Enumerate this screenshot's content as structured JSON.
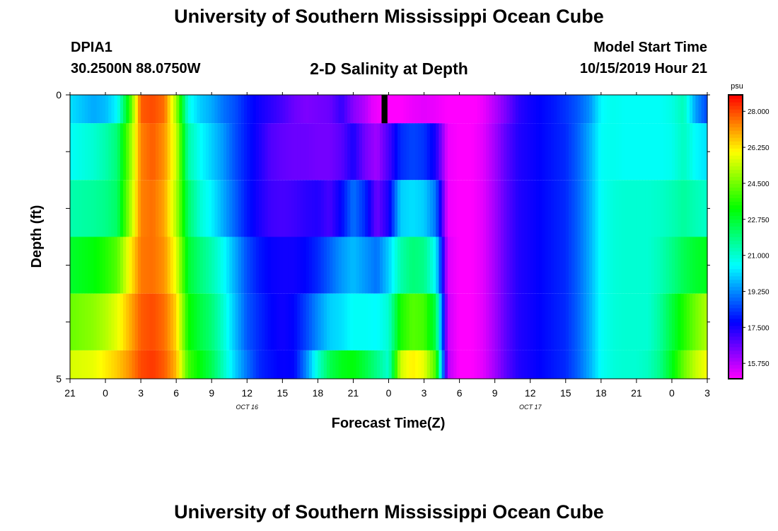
{
  "header": {
    "title": "University of Southern Mississippi Ocean Cube",
    "station": "DPIA1",
    "coords": "30.2500N 88.0750W",
    "subtitle": "2-D Salinity at Depth",
    "model_start_label": "Model Start Time",
    "model_start_value": "10/15/2019 Hour 21"
  },
  "footer": {
    "title": "University of Southern Mississippi Ocean Cube"
  },
  "chart_data": {
    "type": "heatmap",
    "title": "2-D Salinity at Depth",
    "xlabel": "Forecast Time(Z)",
    "ylabel": "Depth (ft)",
    "x_hours": [
      -6,
      48
    ],
    "x_ticks": [
      {
        "h": -6,
        "label": "21"
      },
      {
        "h": -3,
        "label": "0"
      },
      {
        "h": 0,
        "label": "3"
      },
      {
        "h": 3,
        "label": "6"
      },
      {
        "h": 6,
        "label": "9"
      },
      {
        "h": 9,
        "label": "12"
      },
      {
        "h": 12,
        "label": "15"
      },
      {
        "h": 15,
        "label": "18"
      },
      {
        "h": 18,
        "label": "21"
      },
      {
        "h": 21,
        "label": "0"
      },
      {
        "h": 24,
        "label": "3"
      },
      {
        "h": 27,
        "label": "6"
      },
      {
        "h": 30,
        "label": "9"
      },
      {
        "h": 33,
        "label": "12"
      },
      {
        "h": 36,
        "label": "15"
      },
      {
        "h": 39,
        "label": "18"
      },
      {
        "h": 42,
        "label": "21"
      },
      {
        "h": 45,
        "label": "0"
      },
      {
        "h": 48,
        "label": "3"
      }
    ],
    "date_labels": [
      {
        "h": 9,
        "label": "OCT 16"
      },
      {
        "h": 33,
        "label": "OCT 17"
      }
    ],
    "y_ticks": [
      {
        "depth": 0,
        "label": "0"
      },
      {
        "depth": 1,
        "label": ""
      },
      {
        "depth": 2,
        "label": ""
      },
      {
        "depth": 3,
        "label": ""
      },
      {
        "depth": 4,
        "label": ""
      },
      {
        "depth": 5,
        "label": "5"
      }
    ],
    "depth_range": [
      0,
      5
    ],
    "depth_bands": [
      {
        "top": 0.0,
        "bottom": 0.5
      },
      {
        "top": 0.5,
        "bottom": 1.5
      },
      {
        "top": 1.5,
        "bottom": 2.5
      },
      {
        "top": 2.5,
        "bottom": 3.5
      },
      {
        "top": 3.5,
        "bottom": 4.5
      },
      {
        "top": 4.5,
        "bottom": 5.0
      }
    ],
    "salinity_psu": [
      [
        [
          -6,
          20.2
        ],
        [
          -4,
          19.6
        ],
        [
          -3,
          19.8
        ],
        [
          -2,
          20.5
        ],
        [
          -1,
          23.5
        ],
        [
          0,
          27.8
        ],
        [
          1,
          28.0
        ],
        [
          2,
          27.6
        ],
        [
          3,
          25.0
        ],
        [
          4,
          20.8
        ],
        [
          5,
          20.0
        ],
        [
          6,
          19.6
        ],
        [
          7,
          19.0
        ],
        [
          8,
          18.6
        ],
        [
          9,
          18.0
        ],
        [
          10,
          17.6
        ],
        [
          11,
          17.3
        ],
        [
          12,
          17.0
        ],
        [
          13,
          16.6
        ],
        [
          14,
          16.4
        ],
        [
          15,
          16.5
        ],
        [
          16,
          16.6
        ],
        [
          17,
          17.2
        ],
        [
          18,
          16.3
        ],
        [
          19,
          15.8
        ],
        [
          19.6,
          15.3
        ],
        [
          20,
          15.2
        ],
        [
          20.5,
          15.0
        ],
        [
          21,
          15.0
        ],
        [
          22,
          15.0
        ],
        [
          23,
          15.2
        ],
        [
          24,
          15.3
        ],
        [
          25,
          15.2
        ],
        [
          26,
          15.0
        ],
        [
          27,
          14.9
        ],
        [
          28,
          14.9
        ],
        [
          29,
          15.2
        ],
        [
          30,
          15.8
        ],
        [
          31,
          16.5
        ],
        [
          32,
          17.3
        ],
        [
          33,
          17.6
        ],
        [
          34,
          17.8
        ],
        [
          35,
          18.0
        ],
        [
          36,
          18.3
        ],
        [
          37,
          18.7
        ],
        [
          38,
          19.3
        ],
        [
          39,
          20.5
        ],
        [
          40,
          20.7
        ],
        [
          41,
          20.6
        ],
        [
          42,
          20.6
        ],
        [
          43,
          20.6
        ],
        [
          44,
          20.6
        ],
        [
          45,
          20.8
        ],
        [
          46,
          21.3
        ],
        [
          47,
          19.5
        ],
        [
          48,
          18.5
        ]
      ],
      [
        [
          -6,
          20.6
        ],
        [
          -4,
          21.0
        ],
        [
          -3,
          21.4
        ],
        [
          -2,
          22.0
        ],
        [
          -1,
          24.5
        ],
        [
          0,
          27.4
        ],
        [
          1,
          27.8
        ],
        [
          2,
          27.2
        ],
        [
          3,
          25.5
        ],
        [
          4,
          21.5
        ],
        [
          5,
          20.6
        ],
        [
          6,
          20.0
        ],
        [
          7,
          19.4
        ],
        [
          8,
          18.6
        ],
        [
          9,
          18.0
        ],
        [
          10,
          17.5
        ],
        [
          11,
          16.9
        ],
        [
          12,
          16.7
        ],
        [
          13,
          16.6
        ],
        [
          14,
          16.6
        ],
        [
          15,
          16.5
        ],
        [
          16,
          16.5
        ],
        [
          17,
          16.8
        ],
        [
          18,
          17.5
        ],
        [
          19,
          16.5
        ],
        [
          20,
          16.0
        ],
        [
          21,
          17.0
        ],
        [
          22,
          18.2
        ],
        [
          23,
          18.5
        ],
        [
          24,
          18.3
        ],
        [
          25,
          17.5
        ],
        [
          26,
          15.2
        ],
        [
          27,
          15.0
        ],
        [
          28,
          15.0
        ],
        [
          29,
          15.3
        ],
        [
          30,
          16.0
        ],
        [
          31,
          16.8
        ],
        [
          32,
          17.4
        ],
        [
          33,
          17.6
        ],
        [
          34,
          17.8
        ],
        [
          35,
          18.0
        ],
        [
          36,
          18.2
        ],
        [
          37,
          18.8
        ],
        [
          38,
          19.6
        ],
        [
          39,
          20.6
        ],
        [
          40,
          20.7
        ],
        [
          41,
          20.6
        ],
        [
          42,
          20.6
        ],
        [
          43,
          20.6
        ],
        [
          44,
          20.6
        ],
        [
          45,
          20.7
        ],
        [
          46,
          21.2
        ],
        [
          47,
          20.5
        ],
        [
          48,
          20.2
        ]
      ],
      [
        [
          -6,
          21.4
        ],
        [
          -4,
          21.6
        ],
        [
          -3,
          21.8
        ],
        [
          -2,
          22.2
        ],
        [
          -1,
          24.8
        ],
        [
          0,
          27.4
        ],
        [
          1,
          27.6
        ],
        [
          2,
          27.0
        ],
        [
          3,
          25.2
        ],
        [
          4,
          22.2
        ],
        [
          5,
          21.0
        ],
        [
          6,
          20.4
        ],
        [
          7,
          19.6
        ],
        [
          8,
          18.8
        ],
        [
          9,
          18.0
        ],
        [
          10,
          17.5
        ],
        [
          11,
          17.1
        ],
        [
          12,
          17.0
        ],
        [
          13,
          17.1
        ],
        [
          14,
          17.3
        ],
        [
          15,
          17.4
        ],
        [
          16,
          17.0
        ],
        [
          17,
          17.8
        ],
        [
          18,
          19.0
        ],
        [
          19,
          18.2
        ],
        [
          20,
          16.6
        ],
        [
          21,
          17.5
        ],
        [
          22,
          20.0
        ],
        [
          23,
          20.2
        ],
        [
          24,
          20.0
        ],
        [
          25,
          19.0
        ],
        [
          26,
          15.2
        ],
        [
          27,
          15.0
        ],
        [
          28,
          15.0
        ],
        [
          29,
          15.3
        ],
        [
          30,
          16.0
        ],
        [
          31,
          16.8
        ],
        [
          32,
          17.4
        ],
        [
          33,
          17.6
        ],
        [
          34,
          17.8
        ],
        [
          35,
          18.0
        ],
        [
          36,
          18.2
        ],
        [
          37,
          18.8
        ],
        [
          38,
          19.6
        ],
        [
          39,
          20.6
        ],
        [
          40,
          20.9
        ],
        [
          41,
          21.0
        ],
        [
          42,
          21.0
        ],
        [
          43,
          21.0
        ],
        [
          44,
          21.1
        ],
        [
          45,
          21.3
        ],
        [
          46,
          21.6
        ],
        [
          47,
          21.3
        ],
        [
          48,
          21.1
        ]
      ],
      [
        [
          -6,
          22.8
        ],
        [
          -4,
          23.2
        ],
        [
          -3,
          23.6
        ],
        [
          -2,
          24.2
        ],
        [
          -1,
          26.0
        ],
        [
          0,
          27.5
        ],
        [
          1,
          27.6
        ],
        [
          2,
          27.2
        ],
        [
          3,
          25.8
        ],
        [
          4,
          22.8
        ],
        [
          5,
          22.0
        ],
        [
          6,
          21.4
        ],
        [
          7,
          20.6
        ],
        [
          8,
          19.6
        ],
        [
          9,
          18.6
        ],
        [
          10,
          18.0
        ],
        [
          11,
          17.7
        ],
        [
          12,
          17.6
        ],
        [
          13,
          17.6
        ],
        [
          14,
          17.8
        ],
        [
          15,
          18.2
        ],
        [
          16,
          18.8
        ],
        [
          17,
          19.4
        ],
        [
          18,
          19.8
        ],
        [
          19,
          19.4
        ],
        [
          20,
          19.0
        ],
        [
          21,
          20.0
        ],
        [
          22,
          21.4
        ],
        [
          23,
          22.0
        ],
        [
          24,
          21.8
        ],
        [
          25,
          20.5
        ],
        [
          26,
          15.4
        ],
        [
          27,
          15.0
        ],
        [
          28,
          15.0
        ],
        [
          29,
          15.3
        ],
        [
          30,
          16.0
        ],
        [
          31,
          16.8
        ],
        [
          32,
          17.4
        ],
        [
          33,
          17.6
        ],
        [
          34,
          17.8
        ],
        [
          35,
          18.0
        ],
        [
          36,
          18.2
        ],
        [
          37,
          18.8
        ],
        [
          38,
          19.6
        ],
        [
          39,
          20.6
        ],
        [
          40,
          20.9
        ],
        [
          41,
          21.0
        ],
        [
          42,
          21.0
        ],
        [
          43,
          21.0
        ],
        [
          44,
          21.3
        ],
        [
          45,
          21.8
        ],
        [
          46,
          22.4
        ],
        [
          47,
          22.8
        ],
        [
          48,
          23.0
        ]
      ],
      [
        [
          -6,
          24.4
        ],
        [
          -4,
          24.8
        ],
        [
          -3,
          25.2
        ],
        [
          -2,
          25.8
        ],
        [
          -1,
          26.8
        ],
        [
          0,
          27.8
        ],
        [
          1,
          28.0
        ],
        [
          2,
          27.6
        ],
        [
          3,
          26.5
        ],
        [
          4,
          23.4
        ],
        [
          5,
          22.6
        ],
        [
          6,
          22.0
        ],
        [
          7,
          21.0
        ],
        [
          8,
          19.8
        ],
        [
          9,
          18.7
        ],
        [
          10,
          18.2
        ],
        [
          11,
          17.8
        ],
        [
          12,
          17.6
        ],
        [
          13,
          17.8
        ],
        [
          14,
          18.5
        ],
        [
          15,
          19.3
        ],
        [
          16,
          20.0
        ],
        [
          17,
          20.2
        ],
        [
          18,
          20.6
        ],
        [
          19,
          20.6
        ],
        [
          20,
          20.5
        ],
        [
          21,
          21.0
        ],
        [
          22,
          23.5
        ],
        [
          23,
          24.2
        ],
        [
          24,
          24.0
        ],
        [
          25,
          22.5
        ],
        [
          26,
          15.6
        ],
        [
          27,
          15.0
        ],
        [
          28,
          15.0
        ],
        [
          29,
          15.3
        ],
        [
          30,
          16.0
        ],
        [
          31,
          16.8
        ],
        [
          32,
          17.4
        ],
        [
          33,
          17.6
        ],
        [
          34,
          17.8
        ],
        [
          35,
          18.0
        ],
        [
          36,
          18.2
        ],
        [
          37,
          18.8
        ],
        [
          38,
          19.6
        ],
        [
          39,
          20.6
        ],
        [
          40,
          20.9
        ],
        [
          41,
          21.0
        ],
        [
          42,
          21.0
        ],
        [
          43,
          21.0
        ],
        [
          44,
          21.6
        ],
        [
          45,
          22.6
        ],
        [
          46,
          23.6
        ],
        [
          47,
          24.5
        ],
        [
          48,
          25.2
        ]
      ],
      [
        [
          -6,
          25.6
        ],
        [
          -4,
          25.8
        ],
        [
          -3,
          26.2
        ],
        [
          -2,
          26.6
        ],
        [
          -1,
          27.2
        ],
        [
          0,
          28.0
        ],
        [
          1,
          28.2
        ],
        [
          2,
          27.8
        ],
        [
          3,
          26.8
        ],
        [
          4,
          24.0
        ],
        [
          5,
          23.2
        ],
        [
          6,
          22.4
        ],
        [
          7,
          21.2
        ],
        [
          8,
          20.0
        ],
        [
          9,
          19.0
        ],
        [
          10,
          18.2
        ],
        [
          11,
          17.9
        ],
        [
          12,
          17.7
        ],
        [
          13,
          17.8
        ],
        [
          14,
          19.2
        ],
        [
          15,
          21.0
        ],
        [
          16,
          22.4
        ],
        [
          17,
          23.0
        ],
        [
          18,
          23.2
        ],
        [
          19,
          22.6
        ],
        [
          20,
          21.8
        ],
        [
          21,
          21.0
        ],
        [
          22,
          25.5
        ],
        [
          23,
          26.2
        ],
        [
          24,
          25.8
        ],
        [
          25,
          24.0
        ],
        [
          26,
          15.8
        ],
        [
          27,
          15.0
        ],
        [
          28,
          15.0
        ],
        [
          29,
          15.3
        ],
        [
          30,
          16.0
        ],
        [
          31,
          16.8
        ],
        [
          32,
          17.4
        ],
        [
          33,
          17.6
        ],
        [
          34,
          17.8
        ],
        [
          35,
          18.0
        ],
        [
          36,
          18.2
        ],
        [
          37,
          18.8
        ],
        [
          38,
          19.6
        ],
        [
          39,
          20.6
        ],
        [
          40,
          20.9
        ],
        [
          41,
          21.0
        ],
        [
          42,
          21.0
        ],
        [
          43,
          21.2
        ],
        [
          44,
          21.8
        ],
        [
          45,
          23.0
        ],
        [
          46,
          24.4
        ],
        [
          47,
          25.4
        ],
        [
          48,
          26.0
        ]
      ]
    ],
    "missing_segments": [
      {
        "band": 0,
        "h_start": 20.4,
        "h_end": 20.9
      }
    ],
    "colorbar": {
      "unit": "psu",
      "range": [
        15.0,
        28.8
      ],
      "ticks": [
        {
          "v": 28.0,
          "label": "28.000"
        },
        {
          "v": 26.25,
          "label": "26.250"
        },
        {
          "v": 24.5,
          "label": "24.500"
        },
        {
          "v": 22.75,
          "label": "22.750"
        },
        {
          "v": 21.0,
          "label": "21.000"
        },
        {
          "v": 19.25,
          "label": "19.250"
        },
        {
          "v": 17.5,
          "label": "17.500"
        },
        {
          "v": 15.75,
          "label": "15.750"
        }
      ]
    }
  }
}
